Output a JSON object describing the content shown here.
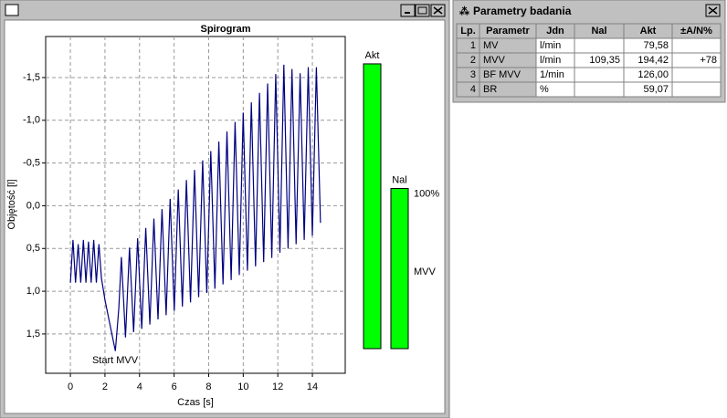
{
  "chart_data": [
    {
      "type": "line",
      "title": "Spirogram",
      "xlabel": "Czas [s]",
      "ylabel": "Objętość [l]",
      "annotation": "Start MVV",
      "x": [
        0,
        0.15,
        0.3,
        0.45,
        0.6,
        0.75,
        0.9,
        1.05,
        1.2,
        1.35,
        1.5,
        1.65,
        1.8,
        2.0,
        2.3,
        2.6,
        2.8,
        2.95,
        3.19,
        3.42,
        3.66,
        3.89,
        4.13,
        4.36,
        4.6,
        4.83,
        5.07,
        5.3,
        5.54,
        5.77,
        6.01,
        6.24,
        6.48,
        6.71,
        6.95,
        7.18,
        7.42,
        7.65,
        7.89,
        8.12,
        8.36,
        8.59,
        8.83,
        9.06,
        9.3,
        9.53,
        9.77,
        10.0,
        10.24,
        10.47,
        10.71,
        10.94,
        11.18,
        11.41,
        11.65,
        11.88,
        12.12,
        12.35,
        12.59,
        12.82,
        13.06,
        13.29,
        13.53,
        13.76,
        14.0,
        14.23,
        14.47
      ],
      "series": [
        {
          "color": "#000080",
          "values": [
            0.9,
            0.4,
            0.9,
            0.45,
            0.9,
            0.4,
            0.9,
            0.42,
            0.9,
            0.4,
            0.9,
            0.45,
            0.85,
            1.1,
            1.4,
            1.7,
            1.2,
            0.6,
            1.54,
            0.49,
            1.48,
            0.38,
            1.44,
            0.26,
            1.39,
            0.15,
            1.33,
            0.04,
            1.28,
            -0.08,
            1.23,
            -0.19,
            1.18,
            -0.3,
            1.13,
            -0.42,
            1.07,
            -0.53,
            1.02,
            -0.64,
            0.97,
            -0.75,
            0.92,
            -0.87,
            0.87,
            -0.98,
            0.81,
            -1.09,
            0.76,
            -1.21,
            0.71,
            -1.32,
            0.66,
            -1.43,
            0.61,
            -1.54,
            0.55,
            -1.65,
            0.5,
            -1.6,
            0.45,
            -1.55,
            0.4,
            -1.62,
            0.35,
            -1.62,
            0.2
          ]
        }
      ],
      "xlim": [
        -1.43,
        15.9
      ],
      "ylim": [
        1.96,
        -1.98
      ],
      "xticks": [
        0,
        2,
        4,
        6,
        8,
        10,
        12,
        14
      ],
      "yticks": [
        {
          "value": -1.5,
          "label": "-1,5"
        },
        {
          "value": -1,
          "label": "-1,0"
        },
        {
          "value": -0.5,
          "label": "-0,5"
        },
        {
          "value": 0,
          "label": "0,0"
        },
        {
          "value": 0.5,
          "label": "0,5"
        },
        {
          "value": 1,
          "label": "1,0"
        },
        {
          "value": 1.5,
          "label": "1,5"
        }
      ],
      "grid": true
    },
    {
      "type": "bar",
      "categories": [
        "Akt",
        "Nal"
      ],
      "values": [
        194.42,
        109.35
      ],
      "color": "#00ff00",
      "ylim": [
        0,
        200
      ],
      "annotations": [
        {
          "text": "100%",
          "color": "#000000"
        },
        {
          "text": "MVV",
          "color": "#008000"
        }
      ]
    }
  ],
  "table": {
    "title": "Parametry badania",
    "header": [
      "Lp.",
      "Parametr",
      "Jdn",
      "Nal",
      "Akt",
      "±A/N%"
    ],
    "rows": [
      [
        "1",
        "MV",
        "l/min",
        null,
        "79,58",
        null
      ],
      [
        "2",
        "MVV",
        "l/min",
        "109,35",
        "194,42",
        "+78"
      ],
      [
        "3",
        "BF MVV",
        "1/min",
        null,
        "126,00",
        null
      ],
      [
        "4",
        "BR",
        "%",
        null,
        "59,07",
        null
      ]
    ]
  }
}
